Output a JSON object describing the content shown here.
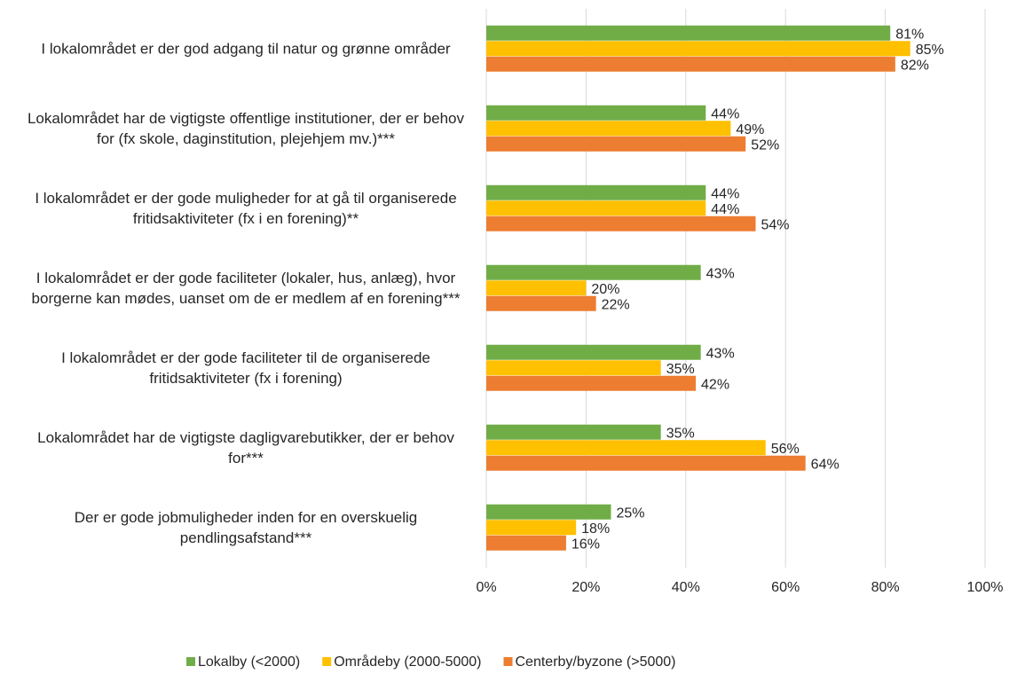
{
  "chart_data": {
    "type": "hbar",
    "categories": [
      "I lokalområdet er der god adgang til natur og grønne områder",
      "Lokalområdet har de vigtigste offentlige institutioner, der er behov for (fx skole, daginstitution, plejehjem mv.)***",
      "I lokalområdet er der gode muligheder for at gå til organiserede fritidsaktiviteter (fx i en forening)**",
      "I lokalområdet er der gode faciliteter (lokaler, hus, anlæg), hvor borgerne kan mødes, uanset om de er medlem af en forening***",
      "I lokalområdet er der gode faciliteter til de organiserede fritidsaktiviteter (fx i forening)",
      "Lokalområdet har de vigtigste dagligvarebutikker, der er behov for***",
      "Der er gode jobmuligheder inden for en overskuelig pendlingsafstand***"
    ],
    "series": [
      {
        "name": "Lokalby (<2000)",
        "color": "#70ad47",
        "values": [
          81,
          44,
          44,
          43,
          43,
          35,
          25
        ],
        "value_labels": [
          "81%",
          "44%",
          "44%",
          "43%",
          "43%",
          "35%",
          "25%"
        ]
      },
      {
        "name": "Områdeby (2000-5000)",
        "color": "#ffc000",
        "values": [
          85,
          49,
          44,
          20,
          35,
          56,
          18
        ],
        "value_labels": [
          "85%",
          "49%",
          "44%",
          "20%",
          "35%",
          "56%",
          "18%"
        ]
      },
      {
        "name": "Centerby/byzone (>5000)",
        "color": "#ed7d31",
        "values": [
          82,
          52,
          54,
          22,
          42,
          64,
          16
        ],
        "value_labels": [
          "82%",
          "52%",
          "54%",
          "22%",
          "42%",
          "64%",
          "16%"
        ]
      }
    ],
    "xlim": [
      0,
      100
    ],
    "xticks": [
      {
        "value": 0,
        "label": "0%"
      },
      {
        "value": 20,
        "label": "20%"
      },
      {
        "value": 40,
        "label": "40%"
      },
      {
        "value": 60,
        "label": "60%"
      },
      {
        "value": 80,
        "label": "80%"
      },
      {
        "value": 100,
        "label": "100%"
      }
    ],
    "grid": true,
    "legend": "bottom"
  }
}
